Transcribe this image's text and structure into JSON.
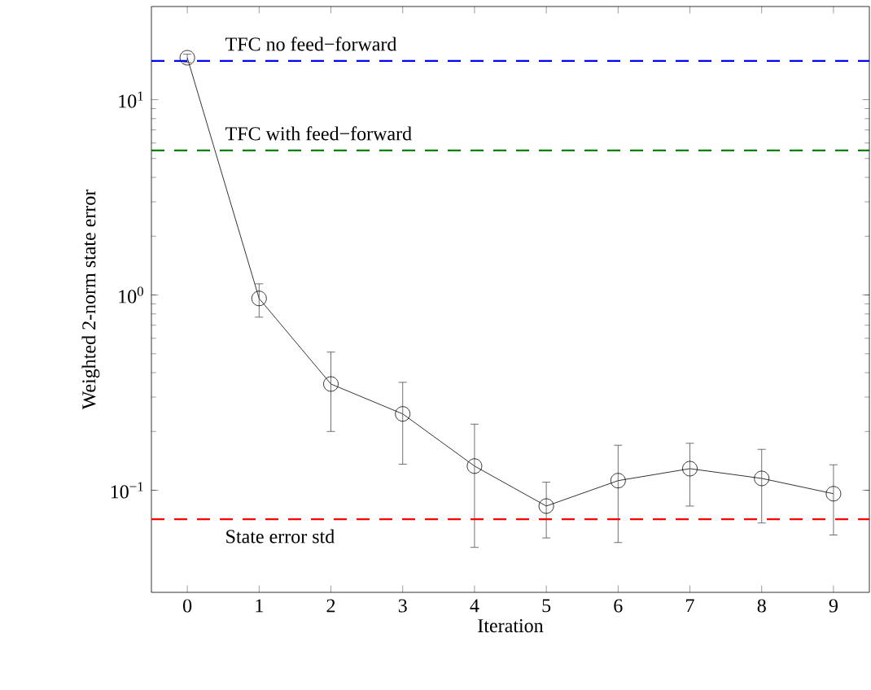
{
  "chart_data": {
    "type": "line",
    "xlabel": "Iteration",
    "ylabel": "Weighted 2-norm state error",
    "log": "y",
    "grid": false,
    "marker": "circle",
    "line_style": "solid",
    "xlim": [
      -0.5,
      9.5
    ],
    "xticks": [
      0,
      1,
      2,
      3,
      4,
      5,
      6,
      7,
      8,
      9
    ],
    "ylim": [
      0.03,
      30
    ],
    "yticks": [
      {
        "value": 0.1,
        "label": "10$^{−1}$"
      },
      {
        "value": 1,
        "label": "10$^{0}$"
      },
      {
        "value": 10,
        "label": "10$^{1}$"
      }
    ],
    "x": [
      0,
      1,
      2,
      3,
      4,
      5,
      6,
      7,
      8,
      9
    ],
    "series": [
      {
        "color": "#000000",
        "values": [
          16.4,
          0.96,
          0.35,
          0.246,
          0.133,
          0.083,
          0.112,
          0.129,
          0.115,
          0.096
        ],
        "errors": [
          [
            15.5,
            17.1
          ],
          [
            0.77,
            1.14
          ],
          [
            0.2,
            0.51
          ],
          [
            0.136,
            0.357
          ],
          [
            0.051,
            0.218
          ],
          [
            0.057,
            0.11
          ],
          [
            0.054,
            0.17
          ],
          [
            0.083,
            0.174
          ],
          [
            0.068,
            0.162
          ],
          [
            0.059,
            0.135
          ]
        ]
      }
    ],
    "ref_lines": [
      {
        "axis": "y",
        "value": 15.8,
        "label": "TFC no feed−forward",
        "color": "#0000ff",
        "line_style": "dashed"
      },
      {
        "axis": "y",
        "value": 5.5,
        "label": "TFC with feed−forward",
        "color": "#008000",
        "line_style": "dashed"
      },
      {
        "axis": "y",
        "value": 0.071,
        "label": "State error std",
        "color": "#ff0000",
        "line_style": "dashed"
      }
    ]
  }
}
